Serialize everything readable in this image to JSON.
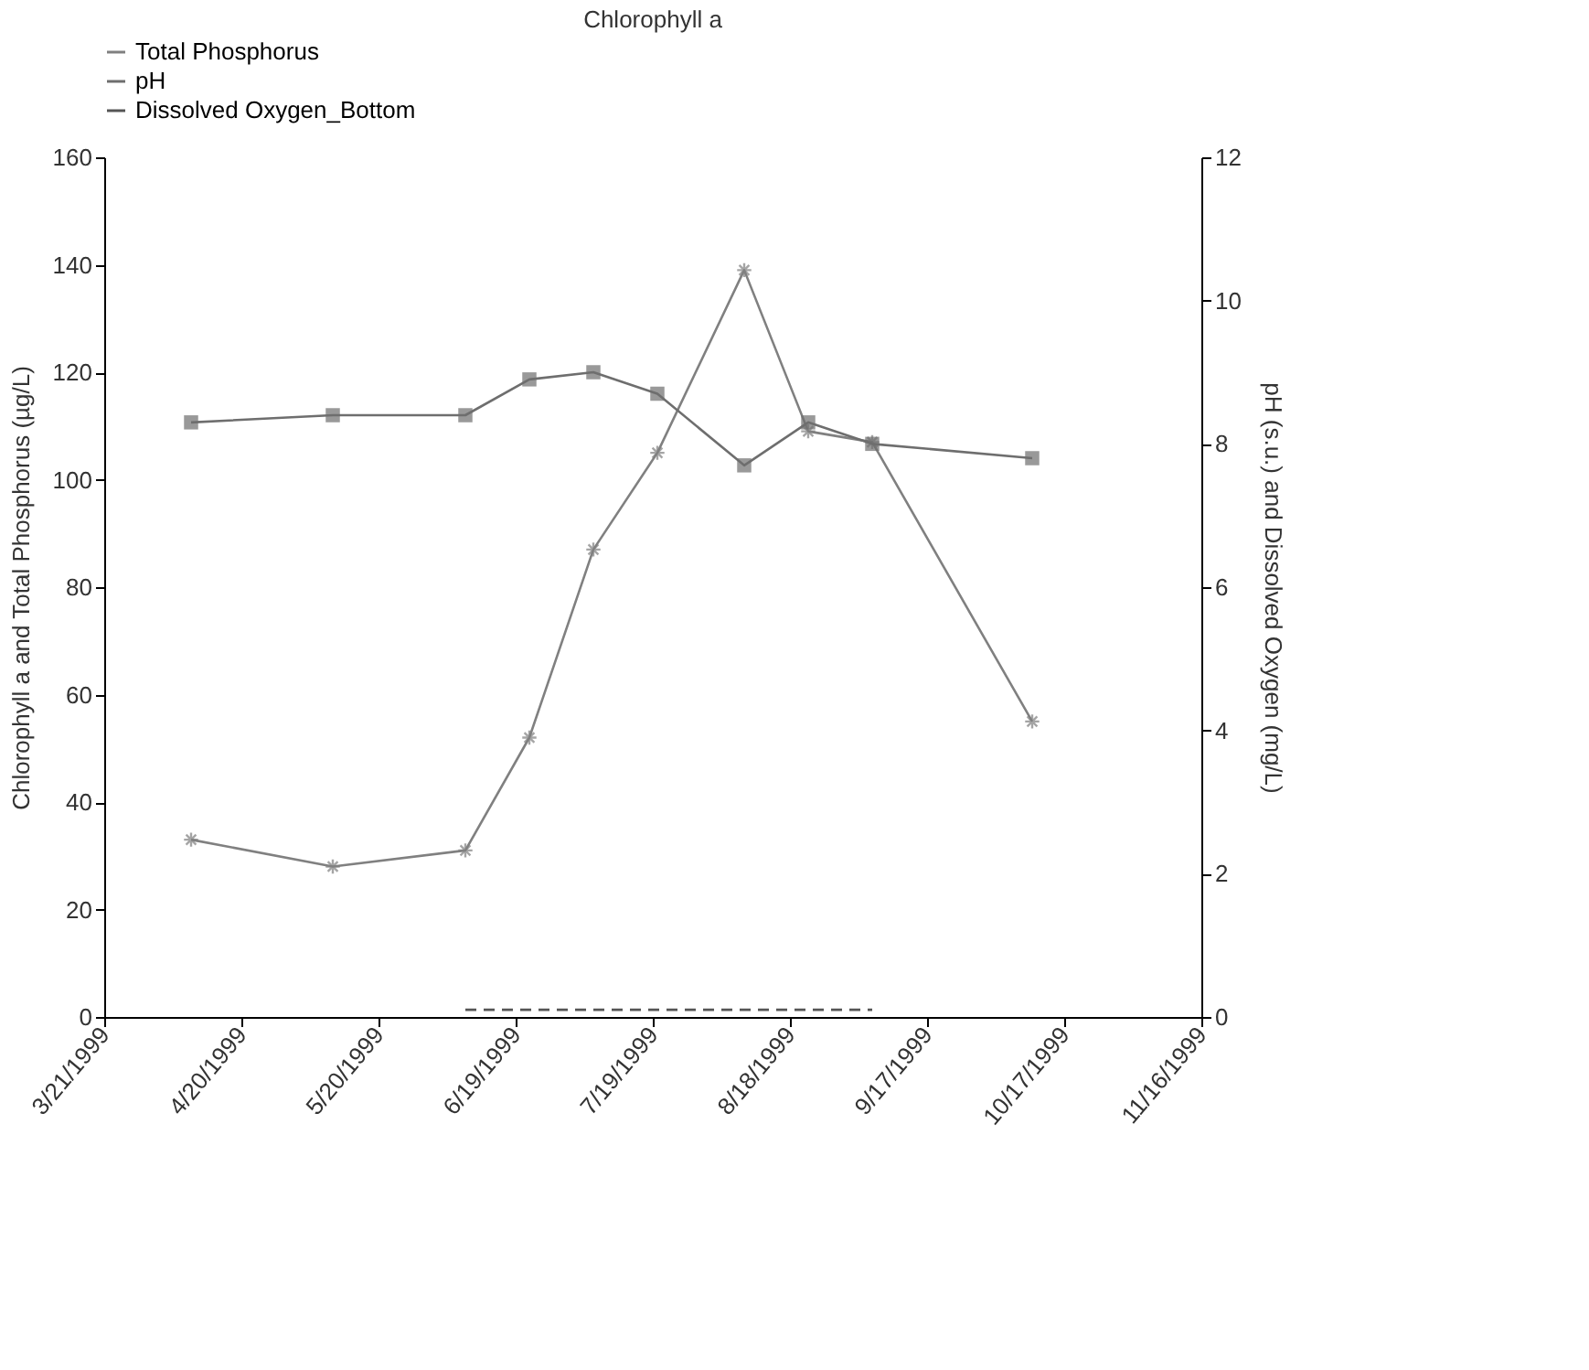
{
  "chart_data": {
    "type": "line",
    "ylabel": "Chlorophyll a and Total Phosphorus (µg/L)",
    "y2label": "pH (s.u.) and Dissolved Oxygen (mg/L)",
    "annotations": [
      "Chlorophyll a"
    ],
    "x": [
      "1999-04-09",
      "1999-05-10",
      "1999-06-08",
      "1999-06-22",
      "1999-07-06",
      "1999-07-20",
      "1999-08-08",
      "1999-08-22",
      "1999-09-05",
      "1999-10-10"
    ],
    "xlim": [
      "1999-03-21",
      "1999-11-16"
    ],
    "xticks": [
      {
        "value": "1999-03-21",
        "label": "3/21/1999"
      },
      {
        "value": "1999-04-20",
        "label": "4/20/1999"
      },
      {
        "value": "1999-05-20",
        "label": "5/20/1999"
      },
      {
        "value": "1999-06-19",
        "label": "6/19/1999"
      },
      {
        "value": "1999-07-19",
        "label": "7/19/1999"
      },
      {
        "value": "1999-08-18",
        "label": "8/18/1999"
      },
      {
        "value": "1999-09-17",
        "label": "9/17/1999"
      },
      {
        "value": "1999-10-17",
        "label": "10/17/1999"
      },
      {
        "value": "1999-11-16",
        "label": "11/16/1999"
      }
    ],
    "ylim": [
      0,
      160
    ],
    "yticks": [
      0,
      20,
      40,
      60,
      80,
      100,
      120,
      140,
      160
    ],
    "y2lim": [
      0,
      12
    ],
    "y2ticks": [
      0,
      2,
      4,
      6,
      8,
      10,
      12
    ],
    "grid": false,
    "legend": "top",
    "series": [
      {
        "name": "Total Phosphorus",
        "color": "#808080",
        "marker": "cross",
        "line_style": "solid",
        "values": [
          33,
          28,
          31,
          52,
          87,
          105,
          139,
          109,
          107,
          55
        ]
      },
      {
        "name": "pH",
        "color": "#6e6e6e",
        "marker": "square",
        "line_style": "solid",
        "axis": "y2",
        "values": [
          8.3,
          8.4,
          8.4,
          8.9,
          9.0,
          8.7,
          7.7,
          8.3,
          8.0,
          7.8
        ]
      },
      {
        "name": "Dissolved Oxygen_Bottom",
        "color": "#555555",
        "marker": "none",
        "line_style": "dashed",
        "axis": "y2",
        "x": [
          "1999-06-08",
          "1999-06-22",
          "1999-07-06",
          "1999-07-20",
          "1999-08-08",
          "1999-08-22",
          "1999-09-05"
        ],
        "values": [
          0.1,
          0.1,
          0.1,
          0.1,
          0.1,
          0.1,
          0.1
        ]
      }
    ]
  }
}
